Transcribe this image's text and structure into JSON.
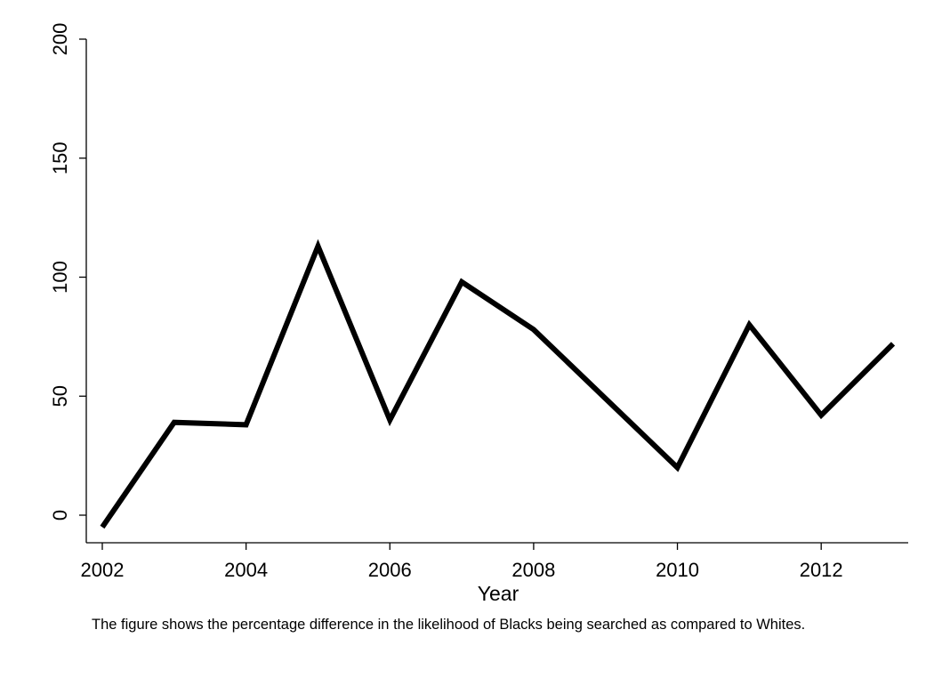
{
  "chart_data": {
    "type": "line",
    "title": "",
    "xlabel": "Year",
    "ylabel": "",
    "x": [
      2002,
      2003,
      2004,
      2005,
      2006,
      2007,
      2008,
      2009,
      2010,
      2011,
      2012,
      2013
    ],
    "series": [
      {
        "values": [
          -5,
          39,
          38,
          113,
          40,
          98,
          78,
          49,
          20,
          80,
          42,
          72
        ]
      }
    ],
    "xlim": [
      2002,
      2013
    ],
    "ylim": [
      -5,
      200
    ],
    "xticks": [
      2002,
      2004,
      2006,
      2008,
      2010,
      2012
    ],
    "yticks": [
      0,
      50,
      100,
      150,
      200
    ],
    "xtick_labels": [
      "2002",
      "2004",
      "2006",
      "2008",
      "2010",
      "2012"
    ],
    "ytick_labels": [
      "0",
      "50",
      "100",
      "150",
      "200"
    ],
    "grid": false,
    "line_color": "#000000"
  },
  "note": "The figure shows the percentage difference in the likelihood of Blacks being searched as compared to Whites."
}
